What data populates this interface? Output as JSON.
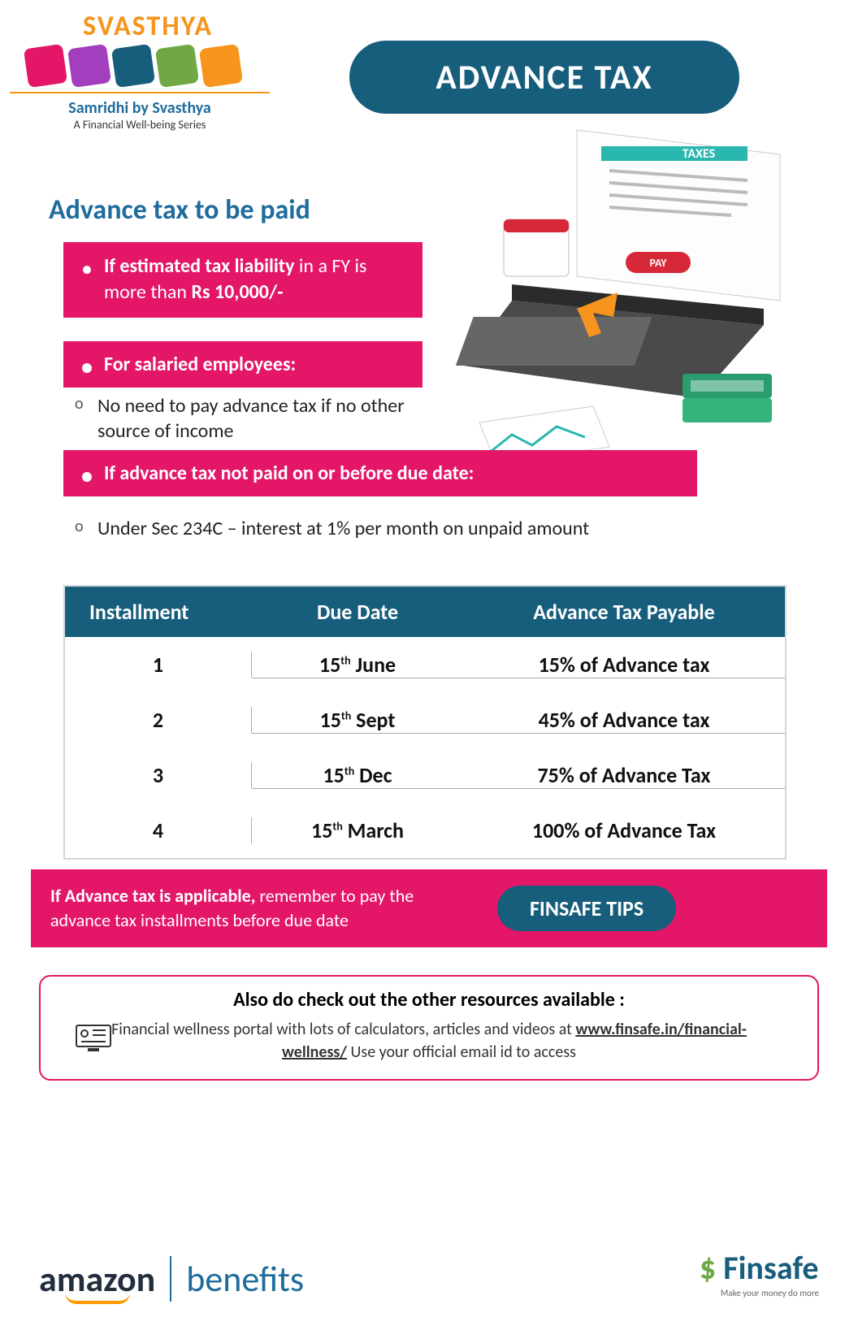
{
  "colors": {
    "teal": "#175d7c",
    "pink": "#e31668",
    "orange": "#f7941d",
    "blue": "#1f6c9c",
    "green": "#6fa844"
  },
  "logo": {
    "brand": "SVASTHYA",
    "subtitle1": "Samridhi by Svasthya",
    "subtitle2": "A Financial Well-being Series",
    "icon_colors": [
      "#e31668",
      "#a33fbf",
      "#175d7c",
      "#6fa844",
      "#f7941d"
    ]
  },
  "title": "ADVANCE TAX",
  "section_title": "Advance tax to be paid",
  "points": {
    "p1_a": "If estimated tax liability ",
    "p1_b": "in a FY is more than ",
    "p1_c": "Rs  10,000/-",
    "p2": "For salaried employees:",
    "p2_sub": "No need to pay advance tax if no other source of income",
    "p3": "If advance tax not paid on or before due date:",
    "p3_sub": "Under Sec 234C – interest at 1% per month on unpaid amount"
  },
  "table": {
    "headers": {
      "c1": "Installment",
      "c2": "Due Date",
      "c3": "Advance Tax Payable"
    },
    "rows": [
      {
        "n": "1",
        "date_day": "15",
        "date_sup": "th",
        "date_month": " June",
        "pay": "15% of Advance tax"
      },
      {
        "n": "2",
        "date_day": "15",
        "date_sup": "th",
        "date_month": " Sept",
        "pay": "45% of Advance tax"
      },
      {
        "n": "3",
        "date_day": "15",
        "date_sup": "th",
        "date_month": " Dec",
        "pay": "75% of Advance Tax"
      },
      {
        "n": "4",
        "date_day": "15",
        "date_sup": "th",
        "date_month": " March",
        "pay": "100% of Advance Tax"
      }
    ]
  },
  "tip": {
    "text_a": "If Advance tax is applicable, ",
    "text_b": "remember to pay the advance tax installments before due date",
    "badge": "FINSAFE TIPS"
  },
  "resources": {
    "title": "Also do check out the other resources available :",
    "body_a": "Financial wellness portal with lots of calculators, articles and videos at ",
    "link": "www.finsafe.in/financial-wellness/",
    "body_b": "  Use your official email id to access"
  },
  "footer": {
    "amazon": "amazon",
    "benefits": "benefits",
    "finsafe": "Finsafe",
    "finsafe_tag": "Make your money do more"
  },
  "illus": {
    "taxes_label": "TAXES",
    "pay_label": "PAY"
  }
}
